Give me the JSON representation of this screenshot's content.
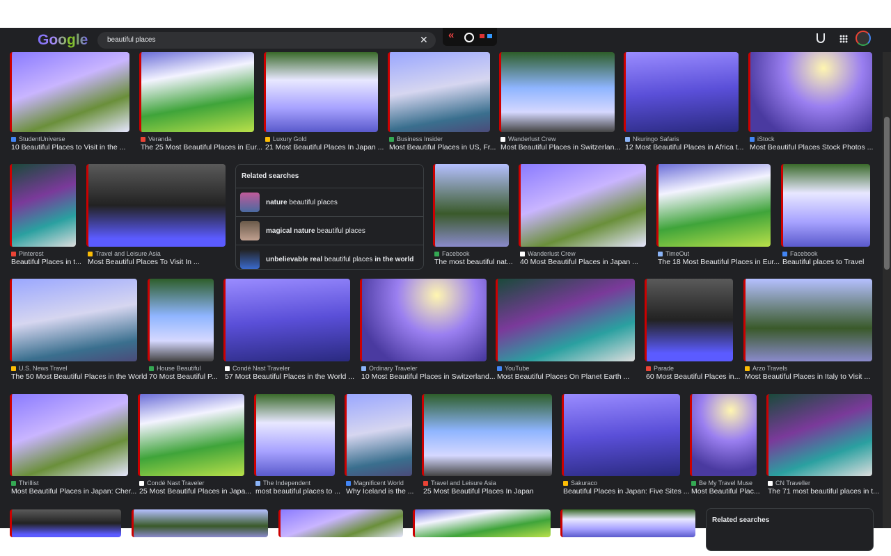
{
  "header": {
    "logo": "Google",
    "query": "beautiful places"
  },
  "rows": [
    [
      {
        "source": "StudentUniverse",
        "title": "10 Beautiful Places to Visit in the ..."
      },
      {
        "source": "Veranda",
        "title": "The 25 Most Beautiful Places in Eur..."
      },
      {
        "source": "Luxury Gold",
        "title": "21 Most Beautiful Places In Japan ..."
      },
      {
        "source": "Business Insider",
        "title": "Most Beautiful Places in US, Fr..."
      },
      {
        "source": "Wanderlust Crew",
        "title": "Most Beautiful Places in Switzerlan..."
      },
      {
        "source": "Nkuringo Safaris",
        "title": "12 Most Beautiful Places in Africa t..."
      },
      {
        "source": "iStock",
        "title": "Most Beautiful Places Stock Photos ..."
      }
    ],
    [
      {
        "source": "Pinterest",
        "title": "Beautiful Places in t..."
      },
      {
        "source": "Travel and Leisure Asia",
        "title": "Most Beautiful Places To Visit In ..."
      },
      {
        "source": "Facebook",
        "title": "The most beautiful nat..."
      },
      {
        "source": "Wanderlust Crew",
        "title": "40 Most Beautiful Places in Japan ..."
      },
      {
        "source": "TimeOut",
        "title": "The 18 Most Beautiful Places in Eur..."
      },
      {
        "source": "Facebook",
        "title": "Beautiful places to Travel"
      }
    ],
    [
      {
        "source": "U.S. News Travel",
        "title": "The 50 Most Beautiful Places in the World"
      },
      {
        "source": "House Beautiful",
        "title": "70 Most Beautiful P..."
      },
      {
        "source": "Condé Nast Traveler",
        "title": "57 Most Beautiful Places in the World ..."
      },
      {
        "source": "Ordinary Traveler",
        "title": "10 Most Beautiful Places in Switzerland..."
      },
      {
        "source": "YouTube",
        "title": "Most Beautiful Places On Planet Earth ..."
      },
      {
        "source": "Parade",
        "title": "60 Most Beautiful Places in..."
      },
      {
        "source": "Arzo Travels",
        "title": "Most Beautiful Places in Italy to Visit ..."
      }
    ],
    [
      {
        "source": "Thrillist",
        "title": "Most Beautiful Places in Japan: Cher..."
      },
      {
        "source": "Condé Nast Traveler",
        "title": "25 Most Beautiful Places in Japa..."
      },
      {
        "source": "The Independent",
        "title": "most beautiful places to ..."
      },
      {
        "source": "Magnificent World",
        "title": "Why Iceland is the ..."
      },
      {
        "source": "Travel and Leisure Asia",
        "title": "25 Most Beautiful Places In Japan"
      },
      {
        "source": "Sakuraco",
        "title": "Beautiful Places in Japan: Five Sites ..."
      },
      {
        "source": "Be My Travel Muse",
        "title": "Most Beautiful Plac..."
      },
      {
        "source": "CN Traveller",
        "title": "The 71 most beautiful places in t..."
      }
    ]
  ],
  "related_searches": [
    {
      "title": "Related searches",
      "items": [
        [
          {
            "text": "nature",
            "bold": true
          },
          {
            "text": " beautiful places",
            "bold": false
          }
        ],
        [
          {
            "text": "magical nature",
            "bold": true
          },
          {
            "text": " beautiful places",
            "bold": false
          }
        ],
        [
          {
            "text": "unbelievable real",
            "bold": true
          },
          {
            "text": " beautiful places ",
            "bold": false
          },
          {
            "text": "in the world",
            "bold": true
          }
        ]
      ]
    },
    {
      "title": "Related searches"
    }
  ]
}
